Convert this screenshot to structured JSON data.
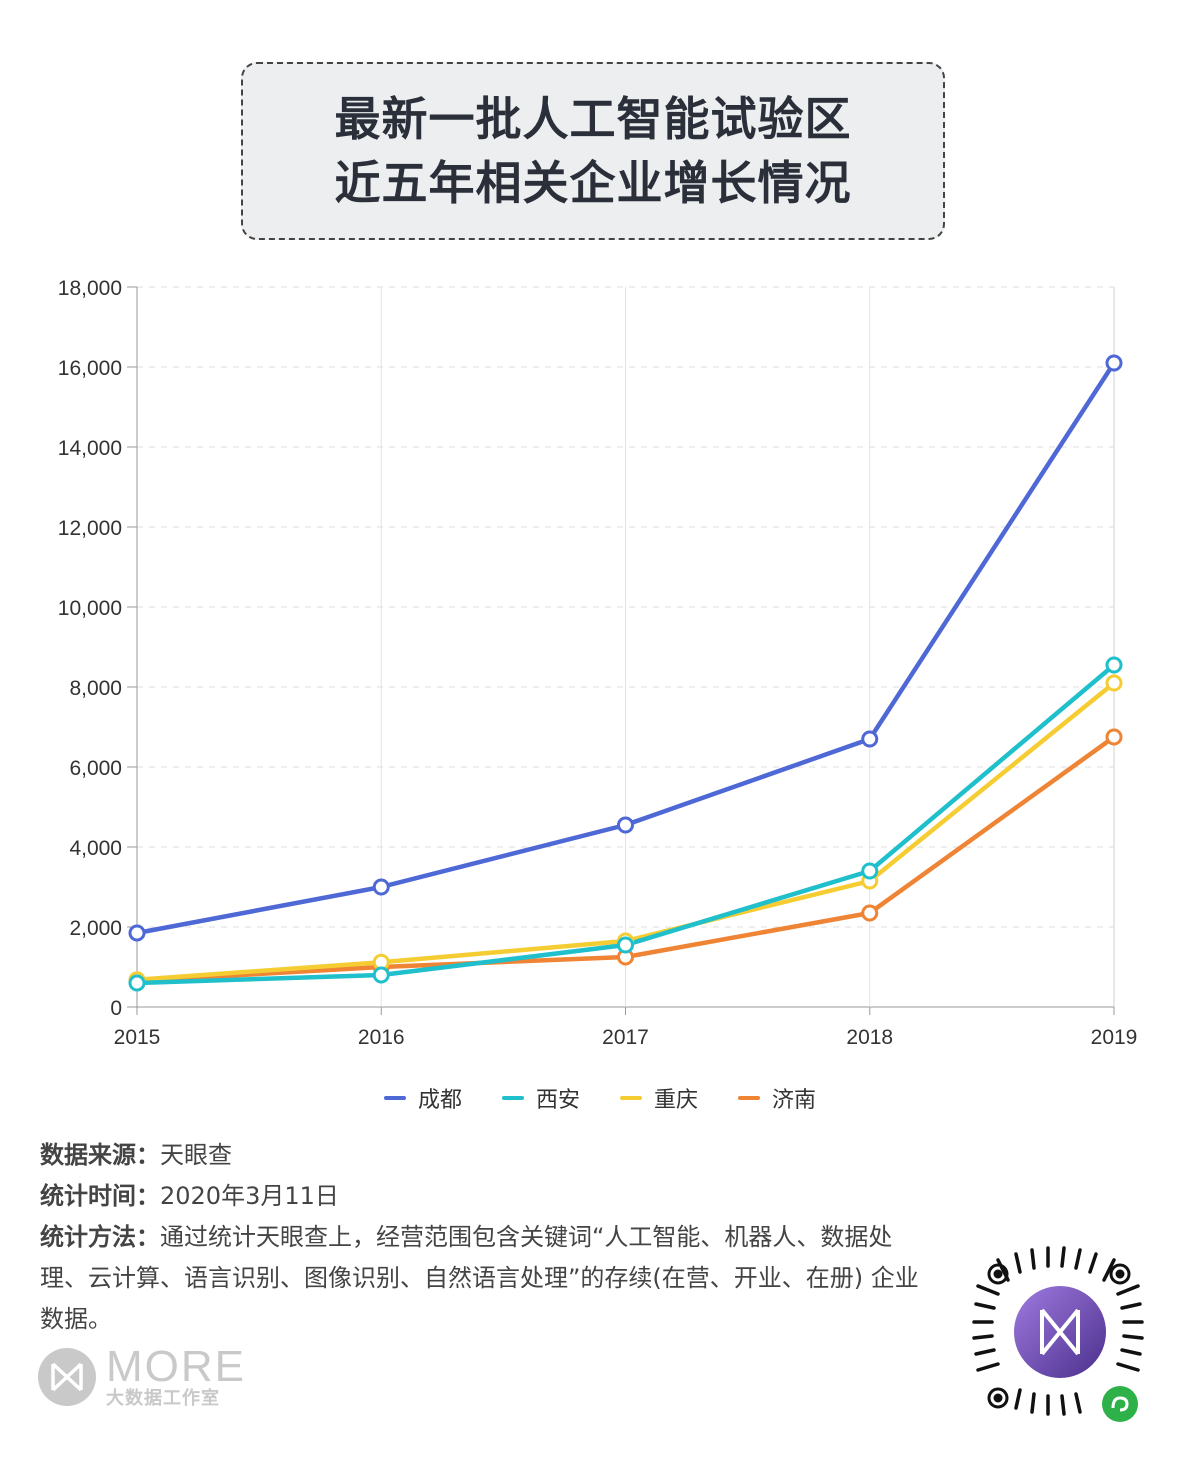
{
  "title": {
    "line1": "最新一批人工智能试验区",
    "line2": "近五年相关企业增长情况"
  },
  "chart_data": {
    "type": "line",
    "x": [
      "2015",
      "2016",
      "2017",
      "2018",
      "2019"
    ],
    "y_ticks": [
      "0",
      "2,000",
      "4,000",
      "6,000",
      "8,000",
      "10,000",
      "12,000",
      "14,000",
      "16,000",
      "18,000"
    ],
    "ylim": [
      0,
      18000
    ],
    "grid": true,
    "legend_position": "bottom",
    "series": [
      {
        "name": "成都",
        "color": "#4e68d6",
        "values": [
          1850,
          3000,
          4550,
          6700,
          16100
        ]
      },
      {
        "name": "西安",
        "color": "#1fbfcb",
        "values": [
          600,
          800,
          1550,
          3400,
          8550
        ]
      },
      {
        "name": "重庆",
        "color": "#f5cd32",
        "values": [
          680,
          1120,
          1650,
          3150,
          8100
        ]
      },
      {
        "name": "济南",
        "color": "#ee8434",
        "values": [
          650,
          1000,
          1250,
          2350,
          6750
        ]
      }
    ]
  },
  "meta": {
    "source_label": "数据来源：",
    "source_value": "天眼查",
    "time_label": "统计时间：",
    "time_value": "2020年3月11日",
    "method_label": "统计方法：",
    "method_value": "通过统计天眼查上，经营范围包含关键词“人工智能、机器人、数据处理、云计算、语言识别、图像识别、自然语言处理”的存续(在营、开业、在册) 企业数据。"
  },
  "logo": {
    "word": "MORE",
    "sub": "大数据工作室"
  }
}
